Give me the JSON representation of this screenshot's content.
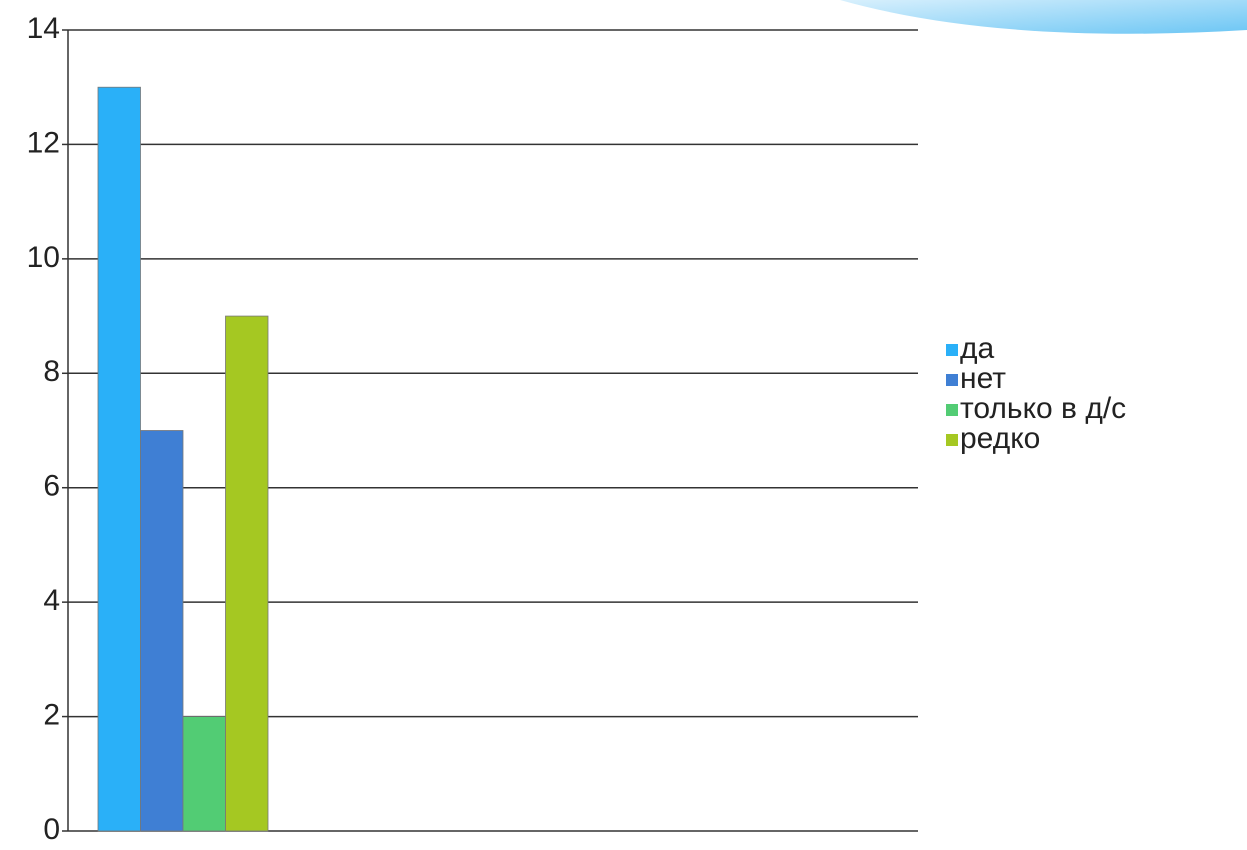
{
  "chart_data": {
    "type": "bar",
    "categories": [
      null
    ],
    "series": [
      {
        "name": "да",
        "color": "#2ab0f8",
        "values": [
          13
        ]
      },
      {
        "name": "нет",
        "color": "#3f7fd4",
        "values": [
          7
        ]
      },
      {
        "name": "только в д/с",
        "color": "#52cc74",
        "values": [
          2
        ]
      },
      {
        "name": "редко",
        "color": "#a5c822",
        "values": [
          9
        ]
      }
    ],
    "ylim": [
      0,
      14
    ],
    "yticks": [
      0,
      2,
      4,
      6,
      8,
      10,
      12,
      14
    ],
    "grid": true,
    "legend": "right"
  }
}
